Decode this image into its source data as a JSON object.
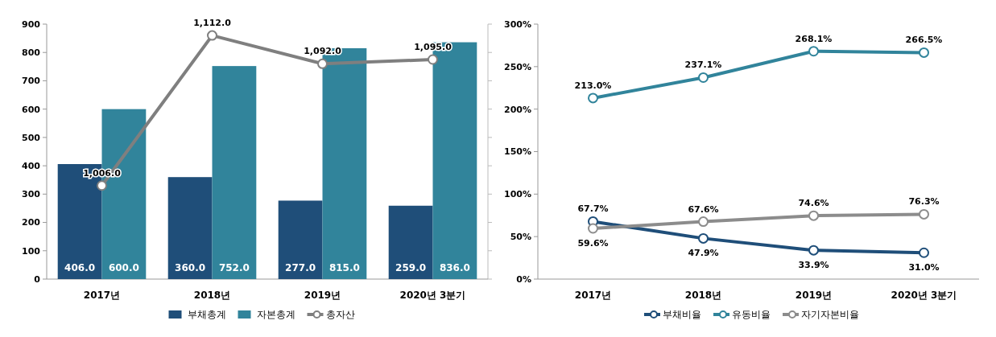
{
  "chart_data": [
    {
      "type": "bar",
      "categories": [
        "2017년",
        "2018년",
        "2019년",
        "2020년 3분기"
      ],
      "series": [
        {
          "name": "부채총계",
          "color": "#1f4e79",
          "values": [
            406,
            360,
            277,
            259
          ],
          "value_labels": [
            "406.0",
            "360.0",
            "277.0",
            "259.0"
          ]
        },
        {
          "name": "자본총계",
          "color": "#31849b",
          "values": [
            600,
            752,
            815,
            836
          ],
          "value_labels": [
            "600.0",
            "752.0",
            "815.0",
            "836.0"
          ]
        },
        {
          "name": "총자산",
          "type": "line",
          "axis": "y2",
          "color": "#7f7f7f",
          "values": [
            1006,
            1112,
            1092,
            1095
          ],
          "value_labels": [
            "1,006.0",
            "1,112.0",
            "1,092.0",
            "1,095.0"
          ]
        }
      ],
      "ylim": [
        0,
        900
      ],
      "yticks": [
        0,
        100,
        200,
        300,
        400,
        500,
        600,
        700,
        800,
        900
      ],
      "y2lim": [
        940,
        1120
      ],
      "y2ticks": [
        {
          "value": 940,
          "label": null
        },
        {
          "value": 960,
          "label": null
        },
        {
          "value": 980,
          "label": null
        },
        {
          "value": 1000,
          "label": null
        },
        {
          "value": 1020,
          "label": null
        },
        {
          "value": 1040,
          "label": null
        },
        {
          "value": 1060,
          "label": null
        },
        {
          "value": 1080,
          "label": null
        },
        {
          "value": 1100,
          "label": null
        },
        {
          "value": 1120,
          "label": null
        }
      ],
      "legend": "bottom",
      "marker": "circle"
    },
    {
      "type": "line",
      "categories": [
        "2017년",
        "2018년",
        "2019년",
        "2020년 3분기"
      ],
      "series": [
        {
          "name": "부채비율",
          "color": "#1f4e79",
          "values": [
            67.7,
            47.9,
            33.9,
            31.0
          ],
          "value_labels": [
            "67.7%",
            "47.9%",
            "33.9%",
            "31.0%"
          ]
        },
        {
          "name": "유동비율",
          "color": "#31849b",
          "values": [
            213.0,
            237.1,
            268.1,
            266.5
          ],
          "value_labels": [
            "213.0%",
            "237.1%",
            "268.1%",
            "266.5%"
          ]
        },
        {
          "name": "자기자본비율",
          "color": "#8c8c8c",
          "values": [
            59.6,
            67.6,
            74.6,
            76.3
          ],
          "value_labels": [
            "59.6%",
            "67.6%",
            "74.6%",
            "76.3%"
          ]
        }
      ],
      "ylim": [
        0,
        300
      ],
      "yticks": [
        {
          "value": 0,
          "label": "0%"
        },
        {
          "value": 50,
          "label": "50%"
        },
        {
          "value": 100,
          "label": "100%"
        },
        {
          "value": 150,
          "label": "150%"
        },
        {
          "value": 200,
          "label": "200%"
        },
        {
          "value": 250,
          "label": "250%"
        },
        {
          "value": 300,
          "label": "300%"
        }
      ],
      "legend": "bottom",
      "marker": "circle"
    }
  ]
}
